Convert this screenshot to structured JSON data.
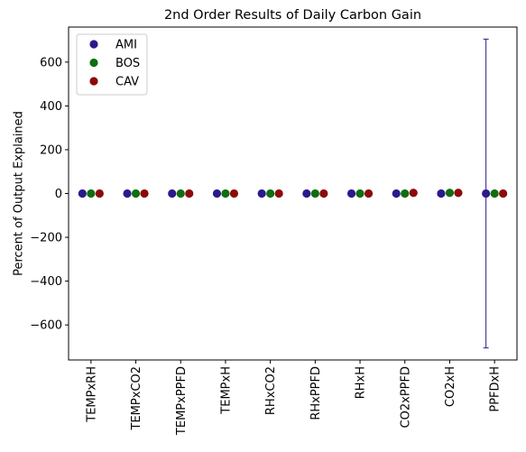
{
  "chart_data": {
    "type": "scatter",
    "title": "2nd Order Results of Daily Carbon Gain",
    "xlabel": "",
    "ylabel": "Percent of Output Explained",
    "categories": [
      "TEMPxRH",
      "TEMPxCO2",
      "TEMPxPPFD",
      "TEMPxH",
      "RHxCO2",
      "RHxPPFD",
      "RHxH",
      "CO2xPPFD",
      "CO2xH",
      "PPFDxH"
    ],
    "ylim": [
      -760,
      760
    ],
    "yticks": [
      -600,
      -400,
      -200,
      0,
      200,
      400,
      600
    ],
    "grid": false,
    "legend_position": "top-left",
    "series": [
      {
        "name": "AMI",
        "color": "#2a1a8c",
        "values": [
          0,
          0,
          0,
          0,
          0,
          0,
          0,
          0,
          0,
          0
        ],
        "error": [
          0,
          0,
          0,
          0,
          0,
          0,
          0,
          0,
          0,
          705
        ]
      },
      {
        "name": "BOS",
        "color": "#0f6e0f",
        "values": [
          0,
          0,
          0,
          0,
          0,
          0,
          0,
          0,
          3,
          0
        ],
        "error": [
          0,
          0,
          0,
          0,
          0,
          0,
          0,
          0,
          0,
          0
        ]
      },
      {
        "name": "CAV",
        "color": "#8b0a0a",
        "values": [
          0,
          0,
          0,
          0,
          0,
          0,
          0,
          3,
          3,
          0
        ],
        "error": [
          0,
          0,
          0,
          0,
          0,
          0,
          0,
          0,
          0,
          0
        ]
      }
    ]
  }
}
